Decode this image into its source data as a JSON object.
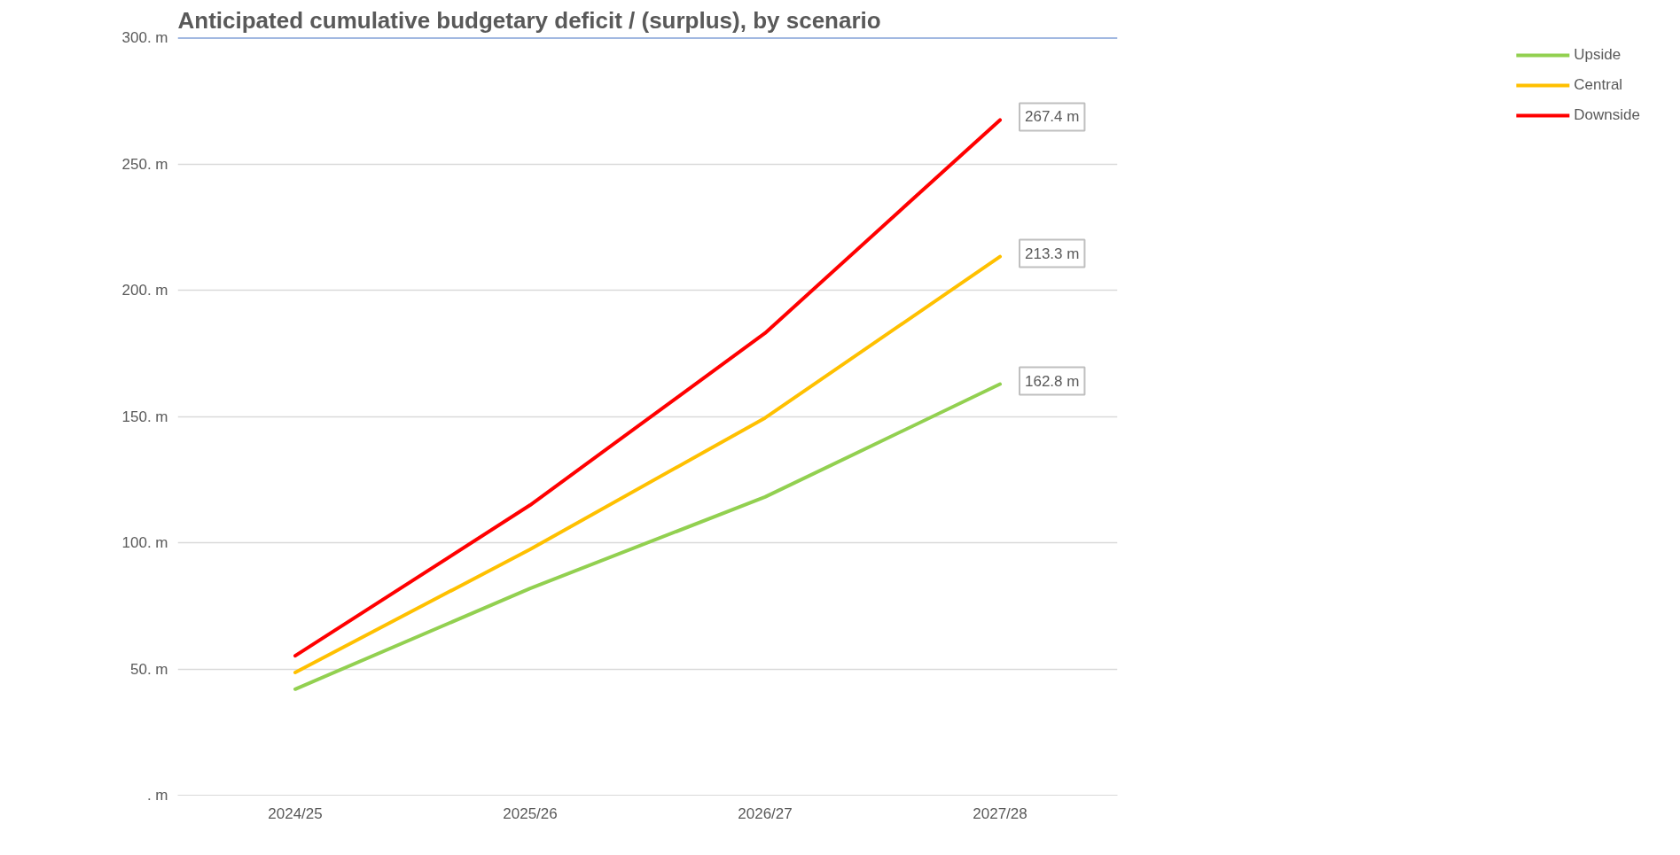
{
  "chart_data": {
    "type": "line",
    "title": "Anticipated cumulative budgetary deficit / (surplus), by scenario",
    "categories": [
      "2024/25",
      "2025/26",
      "2026/27",
      "2027/28"
    ],
    "series": [
      {
        "name": "Upside",
        "color": "#92d050",
        "values": [
          42.0,
          81.9,
          118.1,
          162.8
        ],
        "value_labels": [
          null,
          null,
          null,
          "162.8 m"
        ]
      },
      {
        "name": "Central",
        "color": "#ffc000",
        "values": [
          48.6,
          97.4,
          149.4,
          213.3
        ],
        "value_labels": [
          null,
          null,
          null,
          "213.3 m"
        ]
      },
      {
        "name": "Downside",
        "color": "#ff0000",
        "values": [
          55.2,
          114.9,
          183.0,
          267.4
        ],
        "value_labels": [
          null,
          null,
          null,
          "267.4 m"
        ]
      }
    ],
    "ylim": [
      0,
      300
    ],
    "yticks": [
      {
        "value": 0,
        "label": ". m"
      },
      {
        "value": 50,
        "label": "50. m"
      },
      {
        "value": 100,
        "label": "100. m"
      },
      {
        "value": 150,
        "label": "150. m"
      },
      {
        "value": 200,
        "label": "200. m"
      },
      {
        "value": 250,
        "label": "250. m"
      },
      {
        "value": 300,
        "label": "300. m"
      }
    ],
    "ref_lines": [
      {
        "axis": "y",
        "value": 300,
        "color": "#4472c4"
      }
    ],
    "grid": "y",
    "legend": "top right",
    "marker": "none",
    "line_style": "solid"
  }
}
